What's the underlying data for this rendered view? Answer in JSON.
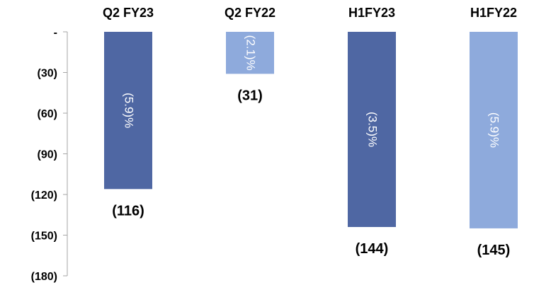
{
  "chart_data": {
    "type": "bar",
    "categories": [
      "Q2 FY23",
      "Q2 FY22",
      "H1FY23",
      "H1FY22"
    ],
    "values": [
      -116,
      -31,
      -144,
      -145
    ],
    "value_labels": [
      "(116)",
      "(31)",
      "(144)",
      "(145)"
    ],
    "percent_labels": [
      "(5.9)%",
      "(2.1)%",
      "(3.5)%",
      "(5.9)%"
    ],
    "ylim": [
      -180,
      0
    ],
    "yticks": [
      0,
      -30,
      -60,
      -90,
      -120,
      -150,
      -180
    ],
    "ytick_labels": [
      "-",
      "(30)",
      "(60)",
      "(90)",
      "(120)",
      "(150)",
      "(180)"
    ],
    "category_axis": "top",
    "grid": false,
    "colors": [
      "#4F67A3",
      "#8EAADC",
      "#4F67A3",
      "#8EAADC"
    ]
  }
}
